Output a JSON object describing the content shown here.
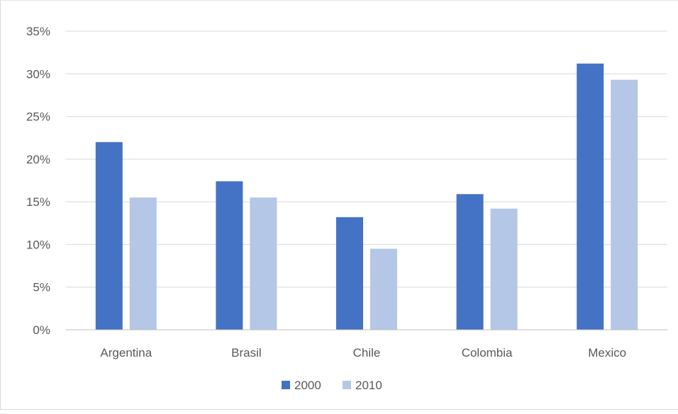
{
  "chart_data": {
    "type": "bar",
    "categories": [
      "Argentina",
      "Brasil",
      "Chile",
      "Colombia",
      "Mexico"
    ],
    "series": [
      {
        "name": "2000",
        "color": "#4472C4",
        "values": [
          22.0,
          17.4,
          13.2,
          15.9,
          31.2
        ]
      },
      {
        "name": "2010",
        "color": "#B4C7E7",
        "values": [
          15.5,
          15.5,
          9.5,
          14.2,
          29.3
        ]
      }
    ],
    "y_ticks": [
      "0%",
      "5%",
      "10%",
      "15%",
      "20%",
      "25%",
      "30%",
      "35%"
    ],
    "ylim": [
      0,
      35
    ],
    "grid": true,
    "legend_position": "bottom",
    "title": "",
    "xlabel": "",
    "ylabel": ""
  }
}
